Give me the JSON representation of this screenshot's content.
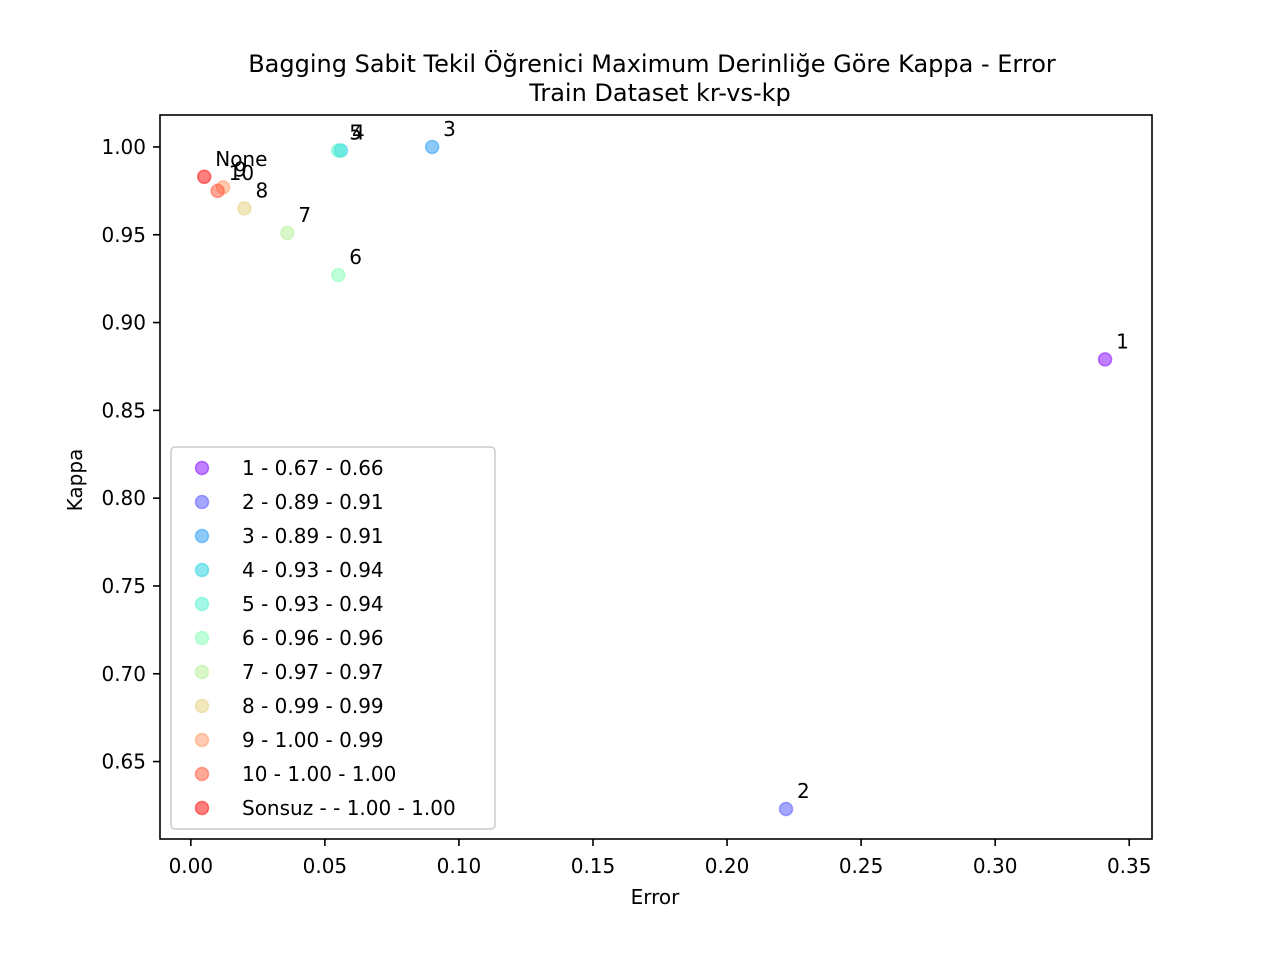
{
  "chart_data": {
    "type": "scatter",
    "title": "Bagging Sabit Tekil Öğrenici Maximum Derinliğe Göre Kappa - Error",
    "subtitle": "Train Dataset  kr-vs-kp",
    "xlabel": "Error",
    "ylabel": "Kappa",
    "xlim": [
      -0.0115,
      0.3585
    ],
    "ylim": [
      0.6059,
      1.0182
    ],
    "xticks": [
      "0.00",
      "0.05",
      "0.10",
      "0.15",
      "0.20",
      "0.25",
      "0.30",
      "0.35"
    ],
    "yticks": [
      "0.65",
      "0.70",
      "0.75",
      "0.80",
      "0.85",
      "0.90",
      "0.95",
      "1.00"
    ],
    "grid": false,
    "legend_position": "lower-left",
    "series": [
      {
        "label": "1",
        "legend": "1 - 0.67 - 0.66",
        "x": 0.341,
        "y": 0.879,
        "color": "#8000ff"
      },
      {
        "label": "2",
        "legend": "2 - 0.89 - 0.91",
        "x": 0.222,
        "y": 0.623,
        "color": "#4c50fd"
      },
      {
        "label": "3",
        "legend": "3 - 0.89 - 0.91",
        "x": 0.09,
        "y": 1.0,
        "color": "#1a96f3"
      },
      {
        "label": "4",
        "legend": "4 - 0.93 - 0.94",
        "x": 0.056,
        "y": 0.998,
        "color": "#1cd0e4"
      },
      {
        "label": "5",
        "legend": "5 - 0.93 - 0.94",
        "x": 0.055,
        "y": 0.998,
        "color": "#4cf1cc"
      },
      {
        "label": "6",
        "legend": "6 - 0.96 - 0.96",
        "x": 0.055,
        "y": 0.927,
        "color": "#80ffb4"
      },
      {
        "label": "7",
        "legend": "7 - 0.97 - 0.97",
        "x": 0.036,
        "y": 0.951,
        "color": "#b2f296"
      },
      {
        "label": "8",
        "legend": "8 - 0.99 - 0.99",
        "x": 0.02,
        "y": 0.965,
        "color": "#e4d07c"
      },
      {
        "label": "9",
        "legend": "9 - 1.00 - 0.99",
        "x": 0.012,
        "y": 0.977,
        "color": "#ff9660"
      },
      {
        "label": "10",
        "legend": "10 - 1.00 - 1.00",
        "x": 0.01,
        "y": 0.975,
        "color": "#ff5030"
      },
      {
        "label": "None",
        "legend": "Sonsuz -  - 1.00 - 1.00",
        "x": 0.005,
        "y": 0.983,
        "color": "#ff0000"
      }
    ]
  }
}
